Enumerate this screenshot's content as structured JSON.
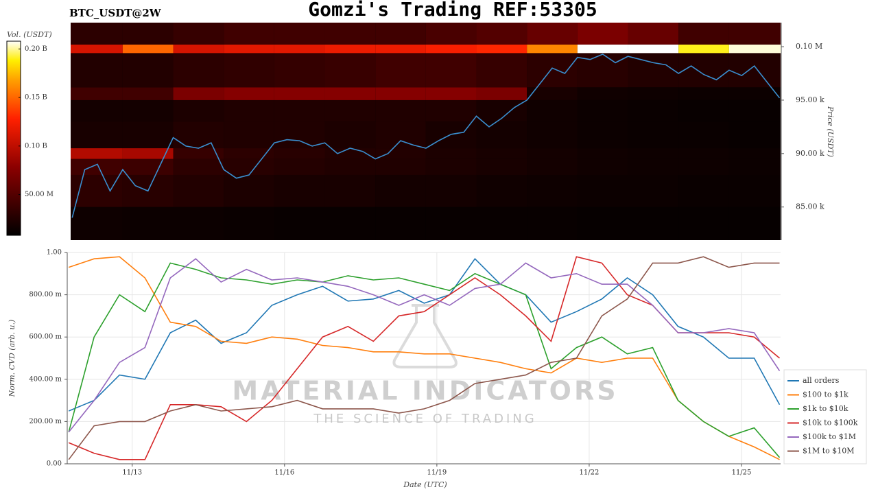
{
  "chart_data": [
    {
      "type": "heatmap",
      "title": "Gomzi's Trading REF:53305",
      "label": "BTC_USDT@2W",
      "colorbar_label": "Vol. (USDT)",
      "ylabel": "Price (USDT)",
      "xlim": [
        11.72,
        25.77
      ],
      "ylim": [
        81900,
        102250
      ],
      "yticks": [
        {
          "value": 100000,
          "label": "0.10 M"
        },
        {
          "value": 95000,
          "label": "95.00 k"
        },
        {
          "value": 90000,
          "label": "90.00 k"
        },
        {
          "value": 85000,
          "label": "85.00 k"
        }
      ],
      "zlim": [
        8000000,
        208000000
      ],
      "zticks": [
        {
          "value": 200000000,
          "label": "0.20 B"
        },
        {
          "value": 150000000,
          "label": "0.15 B"
        },
        {
          "value": 100000000,
          "label": "0.10 B"
        },
        {
          "value": 50000000,
          "label": "50.00 M"
        }
      ],
      "xbins": [
        11.72,
        12.75,
        13.75,
        14.75,
        15.75,
        16.75,
        17.75,
        18.75,
        19.75,
        20.75,
        21.75,
        22.75,
        23.75,
        24.75,
        25.77
      ],
      "ybins": [
        81900,
        85000,
        88000,
        89500,
        90500,
        93000,
        95000,
        96200,
        99400,
        100200,
        102250
      ],
      "z": [
        [
          15000000,
          14000000,
          14000000,
          13000000,
          12000000,
          12000000,
          12000000,
          12000000,
          12000000,
          12000000,
          11000000,
          11000000,
          11000000,
          11000000
        ],
        [
          30000000,
          28000000,
          25000000,
          22000000,
          20000000,
          20000000,
          18000000,
          18000000,
          16000000,
          15000000,
          14000000,
          14000000,
          13000000,
          13000000
        ],
        [
          40000000,
          38000000,
          30000000,
          28000000,
          26000000,
          24000000,
          24000000,
          22000000,
          20000000,
          18000000,
          16000000,
          15000000,
          15000000,
          14000000
        ],
        [
          95000000,
          90000000,
          35000000,
          30000000,
          28000000,
          25000000,
          25000000,
          22000000,
          20000000,
          18000000,
          16000000,
          15000000,
          15000000,
          14000000
        ],
        [
          20000000,
          20000000,
          25000000,
          24000000,
          24000000,
          22000000,
          24000000,
          20000000,
          18000000,
          16000000,
          14000000,
          13000000,
          13000000,
          12000000
        ],
        [
          18000000,
          18000000,
          22000000,
          24000000,
          24000000,
          24000000,
          24000000,
          24000000,
          20000000,
          16000000,
          14000000,
          13000000,
          12000000,
          12000000
        ],
        [
          40000000,
          40000000,
          70000000,
          75000000,
          75000000,
          75000000,
          75000000,
          75000000,
          70000000,
          20000000,
          16000000,
          15000000,
          14000000,
          14000000
        ],
        [
          25000000,
          25000000,
          30000000,
          32000000,
          34000000,
          36000000,
          40000000,
          40000000,
          35000000,
          30000000,
          28000000,
          25000000,
          25000000,
          25000000
        ],
        [
          110000000,
          150000000,
          110000000,
          115000000,
          115000000,
          120000000,
          120000000,
          125000000,
          130000000,
          160000000,
          208000000,
          208000000,
          190000000,
          205000000
        ],
        [
          30000000,
          30000000,
          35000000,
          40000000,
          40000000,
          40000000,
          40000000,
          45000000,
          50000000,
          60000000,
          70000000,
          60000000,
          40000000,
          40000000
        ]
      ],
      "price": {
        "color": "#3a8fd0",
        "x": [
          11.75,
          12.0,
          12.25,
          12.5,
          12.75,
          13.0,
          13.25,
          13.5,
          13.75,
          14.0,
          14.25,
          14.5,
          14.75,
          15.0,
          15.25,
          15.5,
          15.75,
          16.0,
          16.25,
          16.5,
          16.75,
          17.0,
          17.25,
          17.5,
          17.75,
          18.0,
          18.25,
          18.5,
          18.75,
          19.0,
          19.25,
          19.5,
          19.75,
          20.0,
          20.25,
          20.5,
          20.75,
          21.0,
          21.25,
          21.5,
          21.75,
          22.0,
          22.25,
          22.5,
          22.75,
          23.0,
          23.25,
          23.5,
          23.75,
          24.0,
          24.25,
          24.5,
          24.75,
          25.0,
          25.25,
          25.5,
          25.75
        ],
        "values": [
          84000,
          88500,
          89000,
          86500,
          88500,
          87000,
          86500,
          89000,
          91500,
          90700,
          90500,
          91000,
          88500,
          87700,
          88000,
          89500,
          91000,
          91300,
          91200,
          90700,
          91000,
          90000,
          90500,
          90200,
          89500,
          90000,
          91200,
          90800,
          90500,
          91200,
          91800,
          92000,
          93500,
          92500,
          93300,
          94300,
          95000,
          96500,
          98000,
          97500,
          99000,
          98800,
          99300,
          98500,
          99100,
          98800,
          98500,
          98300,
          97500,
          98200,
          97400,
          96900,
          97800,
          97300,
          98200,
          96700,
          95200
        ]
      }
    },
    {
      "type": "line",
      "xlabel": "Date (UTC)",
      "ylabel": "Norm. CVD (arb. u.)",
      "annotations": [
        "MATERIAL INDICATORS",
        "THE SCIENCE OF TRADING"
      ],
      "xlim": [
        11.72,
        25.77
      ],
      "xticks": [
        {
          "value": 13,
          "label": "11/13"
        },
        {
          "value": 16,
          "label": "11/16"
        },
        {
          "value": 19,
          "label": "11/19"
        },
        {
          "value": 22,
          "label": "11/22"
        },
        {
          "value": 25,
          "label": "11/25"
        }
      ],
      "ylim": [
        0,
        1
      ],
      "yticks": [
        {
          "value": 0,
          "label": "0.00"
        },
        {
          "value": 0.2,
          "label": "200.00 m"
        },
        {
          "value": 0.4,
          "label": "400.00 m"
        },
        {
          "value": 0.6,
          "label": "600.00 m"
        },
        {
          "value": 0.8,
          "label": "800.00 m"
        },
        {
          "value": 1,
          "label": "1.00"
        }
      ],
      "grid": true,
      "legend": "lower right",
      "x": [
        11.75,
        12.25,
        12.75,
        13.25,
        13.75,
        14.25,
        14.75,
        15.25,
        15.75,
        16.25,
        16.75,
        17.25,
        17.75,
        18.25,
        18.75,
        19.25,
        19.75,
        20.25,
        20.75,
        21.25,
        21.75,
        22.25,
        22.75,
        23.25,
        23.75,
        24.25,
        24.75,
        25.25,
        25.75
      ],
      "series": [
        {
          "name": "all orders",
          "color": "#1f77b4",
          "values": [
            0.25,
            0.3,
            0.42,
            0.4,
            0.62,
            0.68,
            0.57,
            0.62,
            0.75,
            0.8,
            0.84,
            0.77,
            0.78,
            0.82,
            0.76,
            0.8,
            0.97,
            0.85,
            0.8,
            0.67,
            0.72,
            0.78,
            0.88,
            0.8,
            0.65,
            0.6,
            0.5,
            0.5,
            0.28
          ]
        },
        {
          "name": "$100 to $1k",
          "color": "#ff7f0e",
          "values": [
            0.93,
            0.97,
            0.98,
            0.88,
            0.67,
            0.65,
            0.58,
            0.57,
            0.6,
            0.59,
            0.56,
            0.55,
            0.53,
            0.53,
            0.52,
            0.52,
            0.5,
            0.48,
            0.45,
            0.43,
            0.5,
            0.48,
            0.5,
            0.5,
            0.3,
            0.2,
            0.13,
            0.08,
            0.02
          ]
        },
        {
          "name": "$1k to $10k",
          "color": "#2ca02c",
          "values": [
            0.15,
            0.6,
            0.8,
            0.72,
            0.95,
            0.92,
            0.88,
            0.87,
            0.85,
            0.87,
            0.86,
            0.89,
            0.87,
            0.88,
            0.85,
            0.82,
            0.9,
            0.85,
            0.8,
            0.45,
            0.55,
            0.6,
            0.52,
            0.55,
            0.3,
            0.2,
            0.13,
            0.17,
            0.03
          ]
        },
        {
          "name": "$10k to $100k",
          "color": "#d62728",
          "values": [
            0.1,
            0.05,
            0.02,
            0.02,
            0.28,
            0.28,
            0.27,
            0.2,
            0.3,
            0.45,
            0.6,
            0.65,
            0.58,
            0.7,
            0.72,
            0.8,
            0.88,
            0.8,
            0.7,
            0.58,
            0.98,
            0.95,
            0.8,
            0.75,
            0.62,
            0.62,
            0.62,
            0.6,
            0.5
          ]
        },
        {
          "name": "$100k to $1M",
          "color": "#9467bd",
          "values": [
            0.15,
            0.3,
            0.48,
            0.55,
            0.88,
            0.97,
            0.86,
            0.92,
            0.87,
            0.88,
            0.86,
            0.84,
            0.8,
            0.75,
            0.8,
            0.75,
            0.83,
            0.85,
            0.95,
            0.88,
            0.9,
            0.85,
            0.85,
            0.75,
            0.62,
            0.62,
            0.64,
            0.62,
            0.44
          ]
        },
        {
          "name": "$1M to $10M",
          "color": "#8c564b",
          "values": [
            0.02,
            0.18,
            0.2,
            0.2,
            0.25,
            0.28,
            0.25,
            0.26,
            0.27,
            0.3,
            0.26,
            0.26,
            0.26,
            0.24,
            0.26,
            0.3,
            0.38,
            0.4,
            0.42,
            0.48,
            0.5,
            0.7,
            0.78,
            0.95,
            0.95,
            0.98,
            0.93,
            0.95,
            0.95
          ]
        }
      ]
    }
  ]
}
